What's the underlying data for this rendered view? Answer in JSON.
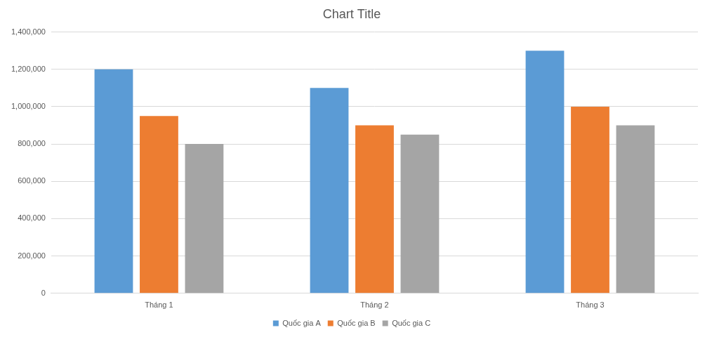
{
  "chart_data": {
    "type": "bar",
    "title": "Chart Title",
    "categories": [
      "Tháng 1",
      "Tháng 2",
      "Tháng 3"
    ],
    "series": [
      {
        "name": "Quốc gia A",
        "color": "#5b9bd5",
        "values": [
          1200000,
          1100000,
          1300000
        ]
      },
      {
        "name": "Quốc gia B",
        "color": "#ed7d31",
        "values": [
          950000,
          900000,
          1000000
        ]
      },
      {
        "name": "Quốc gia C",
        "color": "#a5a5a5",
        "values": [
          800000,
          850000,
          900000
        ]
      }
    ],
    "ylim": [
      0,
      1400000
    ],
    "yticks": [
      0,
      {
        "value": 200000,
        "label": "200,000"
      },
      {
        "value": 400000,
        "label": "400,000"
      },
      {
        "value": 600000,
        "label": "600,000"
      },
      {
        "value": 800000,
        "label": "800,000"
      },
      {
        "value": 1000000,
        "label": "1,000,000"
      },
      {
        "value": 1200000,
        "label": "1,200,000"
      },
      {
        "value": 1400000,
        "label": "1,400,000"
      }
    ],
    "grid": true,
    "legend": "bottom"
  }
}
